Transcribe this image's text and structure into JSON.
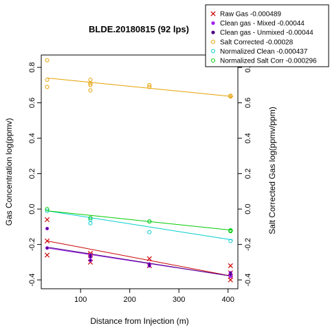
{
  "chart_data": {
    "type": "scatter",
    "title": "BLDE.20180815 (92 lps)",
    "xlabel": "Distance from Injection (m)",
    "ylabel": "Gas Concentration log(ppmv)",
    "y2label": "Salt Corrected Gas log(ppmv/ppm)",
    "xlim": [
      20,
      420
    ],
    "ylim": [
      -0.45,
      0.87
    ],
    "x_ticks": [
      100,
      200,
      300,
      400
    ],
    "y_ticks": [
      -0.4,
      -0.2,
      0.0,
      0.2,
      0.4,
      0.6,
      0.8
    ],
    "y_tick_labels": [
      "-0.4",
      "-0.2",
      "0.0",
      "0.2",
      "0.4",
      "0.6",
      "0.8"
    ],
    "y2_ticks": [
      -0.4,
      -0.2,
      0.0,
      0.2,
      0.4,
      0.6,
      0.8
    ],
    "y2_tick_labels": [
      "-0.4",
      "-0.2",
      "0.0",
      "0.2",
      "0.4",
      "0.6",
      "0.8"
    ],
    "grid": false,
    "legend_position": "top-right",
    "series": [
      {
        "name": "Raw Gas -0.000489",
        "color": "#cc0000",
        "marker": "cross",
        "points": [
          [
            32,
            -0.06
          ],
          [
            32,
            -0.18
          ],
          [
            32,
            -0.26
          ],
          [
            120,
            -0.25
          ],
          [
            120,
            -0.26
          ],
          [
            120,
            -0.28
          ],
          [
            120,
            -0.3
          ],
          [
            240,
            -0.28
          ],
          [
            240,
            -0.32
          ],
          [
            405,
            -0.32
          ],
          [
            405,
            -0.36
          ],
          [
            405,
            -0.38
          ],
          [
            405,
            -0.4
          ]
        ],
        "fit": [
          [
            32,
            -0.18
          ],
          [
            410,
            -0.38
          ]
        ]
      },
      {
        "name": "Clean gas - Mixed -0.00044",
        "color": "#a020f0",
        "marker": "dot",
        "points": [
          [
            32,
            -0.11
          ],
          [
            32,
            -0.22
          ],
          [
            120,
            -0.26
          ],
          [
            120,
            -0.27
          ],
          [
            120,
            -0.29
          ],
          [
            240,
            -0.31
          ],
          [
            240,
            -0.32
          ],
          [
            405,
            -0.36
          ],
          [
            405,
            -0.37
          ],
          [
            405,
            -0.38
          ]
        ],
        "fit": [
          [
            32,
            -0.22
          ],
          [
            410,
            -0.38
          ]
        ]
      },
      {
        "name": "Clean gas - Unmixed -0.00044",
        "color": "#4b0082",
        "marker": "dot-small",
        "points": [
          [
            32,
            -0.11
          ],
          [
            32,
            -0.22
          ],
          [
            120,
            -0.26
          ],
          [
            120,
            -0.27
          ],
          [
            120,
            -0.29
          ],
          [
            240,
            -0.31
          ],
          [
            240,
            -0.32
          ],
          [
            405,
            -0.36
          ],
          [
            405,
            -0.37
          ]
        ],
        "fit": [
          [
            32,
            -0.215
          ],
          [
            410,
            -0.38
          ]
        ]
      },
      {
        "name": "Salt Corrected -0.00028",
        "color": "#e69f00",
        "marker": "circle",
        "points": [
          [
            32,
            0.84
          ],
          [
            32,
            0.73
          ],
          [
            32,
            0.69
          ],
          [
            120,
            0.73
          ],
          [
            120,
            0.71
          ],
          [
            120,
            0.7
          ],
          [
            120,
            0.67
          ],
          [
            240,
            0.7
          ],
          [
            240,
            0.69
          ],
          [
            405,
            0.64
          ],
          [
            405,
            0.635
          ]
        ],
        "fit": [
          [
            32,
            0.74
          ],
          [
            410,
            0.635
          ]
        ]
      },
      {
        "name": "Normalized Clean -0.000437",
        "color": "#00cccc",
        "marker": "circle",
        "points": [
          [
            32,
            -0.01
          ],
          [
            120,
            -0.06
          ],
          [
            120,
            -0.08
          ],
          [
            240,
            -0.07
          ],
          [
            240,
            -0.13
          ],
          [
            405,
            -0.12
          ],
          [
            405,
            -0.18
          ]
        ],
        "fit": [
          [
            32,
            -0.01
          ],
          [
            410,
            -0.175
          ]
        ]
      },
      {
        "name": "Normalized Salt Corr -0.000296",
        "color": "#00cc00",
        "marker": "circle",
        "points": [
          [
            32,
            0.0
          ],
          [
            120,
            -0.05
          ],
          [
            240,
            -0.07
          ],
          [
            405,
            -0.12
          ],
          [
            405,
            -0.125
          ]
        ],
        "fit": [
          [
            32,
            -0.01
          ],
          [
            410,
            -0.12
          ]
        ]
      }
    ]
  }
}
